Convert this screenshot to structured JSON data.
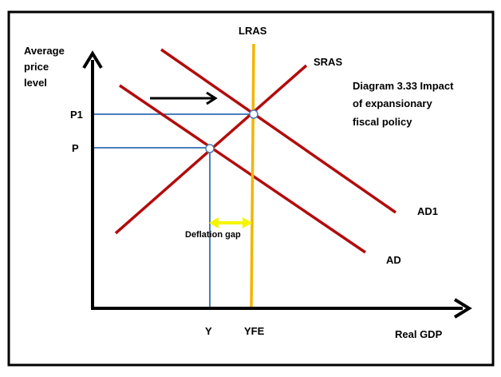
{
  "y_axis_label": [
    "Average",
    "price",
    "level"
  ],
  "x_axis_label": "Real GDP",
  "title_lines": [
    "Diagram 3.33 Impact",
    "of expansionary",
    "fiscal policy"
  ],
  "curves": {
    "lras": "LRAS",
    "sras": "SRAS",
    "ad1": "AD1",
    "ad": "AD"
  },
  "price_levels": {
    "p1": "P1",
    "p": "P"
  },
  "output_levels": {
    "y": "Y",
    "yfe": "YFE"
  },
  "gap_label": "Deflation gap",
  "colors": {
    "curve": "#b30c0c",
    "lras": "#f4b400",
    "guide": "#4a7ebb",
    "gap_arrow": "#f5f500",
    "axis": "#000000",
    "frame": "#000000"
  }
}
